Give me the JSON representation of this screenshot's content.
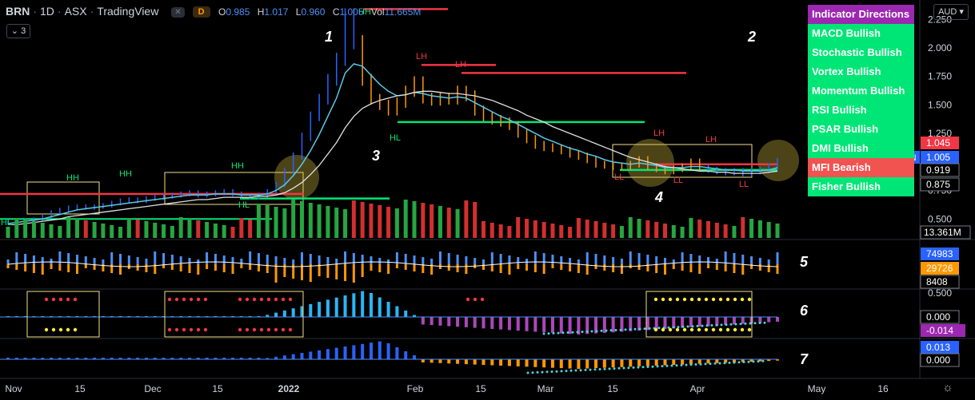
{
  "header": {
    "symbol": "BRN",
    "interval": "1D",
    "exchange": "ASX",
    "source": "TradingView",
    "d_badge": "D",
    "open_label": "O",
    "open": "0.985",
    "high_label": "H",
    "high": "1.017",
    "low_label": "L",
    "low": "0.960",
    "close_label": "C",
    "close": "1.005",
    "vol_label": "Vol",
    "vol": "11.665M",
    "collapse_count": "3",
    "currency": "AUD"
  },
  "indicator_table": {
    "header": "Indicator Directions",
    "rows": [
      {
        "label": "MACD Bullish",
        "color": "#00e676"
      },
      {
        "label": "Stochastic Bullish",
        "color": "#00e676"
      },
      {
        "label": "Vortex Bullish",
        "color": "#00e676"
      },
      {
        "label": "Momentum Bullish",
        "color": "#00e676"
      },
      {
        "label": "RSI Bullish",
        "color": "#00e676"
      },
      {
        "label": "PSAR Bullish",
        "color": "#00e676"
      },
      {
        "label": "DMI Bullish",
        "color": "#00e676"
      },
      {
        "label": "MFI Bearish",
        "color": "#f05350"
      },
      {
        "label": "Fisher Bullish",
        "color": "#00e676"
      }
    ],
    "header_color": "#9c27b0"
  },
  "annotations": [
    "1",
    "2",
    "3",
    "4",
    "5",
    "6",
    "7"
  ],
  "chart_data": [
    {
      "panel": "price",
      "type": "line",
      "title": "BRN · 1D · ASX",
      "price_ticks": [
        "2.250",
        "2.000",
        "1.750",
        "1.500",
        "1.250",
        "1.000",
        "0.750",
        "0.500"
      ],
      "ylim": [
        0.32,
        2.42
      ],
      "x_tick_labels": [
        "Nov",
        "15",
        "Dec",
        "15",
        "2022",
        "Feb",
        "15",
        "Mar",
        "15",
        "Apr",
        "May",
        "16"
      ],
      "price_labels": [
        {
          "text": "1.045",
          "color": "#f23645"
        },
        {
          "text": "1.005",
          "color": "#2962ff"
        },
        {
          "text": "BRN",
          "color": "#2962ff"
        },
        {
          "text": "0.919",
          "color": "#ffffff"
        },
        {
          "text": "0.875",
          "color": "#ffffff"
        }
      ],
      "swing_labels": [
        "HL",
        "HH",
        "HH",
        "HH",
        "HL",
        "HH",
        "HL",
        "LH",
        "LH",
        "LL",
        "LH",
        "LL",
        "LH",
        "LL"
      ],
      "close_series": [
        0.47,
        0.48,
        0.49,
        0.5,
        0.52,
        0.56,
        0.58,
        0.6,
        0.61,
        0.6,
        0.61,
        0.62,
        0.64,
        0.66,
        0.67,
        0.66,
        0.68,
        0.69,
        0.7,
        0.71,
        0.72,
        0.73,
        0.71,
        0.72,
        0.73,
        0.74,
        0.72,
        0.7,
        0.69,
        0.71,
        0.74,
        0.8,
        0.92,
        1.05,
        1.22,
        1.4,
        1.55,
        1.72,
        1.9,
        2.28,
        2.05,
        1.72,
        1.55,
        1.5,
        1.45,
        1.52,
        1.62,
        1.7,
        1.56,
        1.54,
        1.56,
        1.55,
        1.62,
        1.58,
        1.45,
        1.4,
        1.37,
        1.35,
        1.32,
        1.25,
        1.2,
        1.15,
        1.13,
        1.12,
        1.1,
        1.07,
        1.05,
        1.02,
        0.98,
        0.97,
        0.96,
        0.96,
        0.98,
        1.02,
        0.96,
        0.94,
        0.92,
        0.94,
        0.96,
        1.0,
        0.95,
        0.93,
        0.92,
        0.91,
        0.92,
        0.9,
        0.92,
        0.93,
        0.96,
        1.005
      ],
      "ema_fast": [
        0.46,
        0.47,
        0.48,
        0.49,
        0.5,
        0.52,
        0.54,
        0.56,
        0.58,
        0.59,
        0.6,
        0.61,
        0.62,
        0.63,
        0.64,
        0.65,
        0.66,
        0.67,
        0.68,
        0.69,
        0.7,
        0.71,
        0.71,
        0.71,
        0.72,
        0.72,
        0.72,
        0.71,
        0.71,
        0.71,
        0.72,
        0.75,
        0.8,
        0.88,
        0.98,
        1.1,
        1.24,
        1.4,
        1.56,
        1.78,
        1.86,
        1.84,
        1.76,
        1.68,
        1.62,
        1.58,
        1.59,
        1.61,
        1.6,
        1.58,
        1.57,
        1.56,
        1.57,
        1.56,
        1.52,
        1.48,
        1.44,
        1.4,
        1.37,
        1.33,
        1.29,
        1.25,
        1.21,
        1.18,
        1.15,
        1.12,
        1.1,
        1.07,
        1.05,
        1.02,
        1.0,
        0.99,
        0.98,
        0.99,
        0.98,
        0.97,
        0.95,
        0.95,
        0.95,
        0.96,
        0.96,
        0.95,
        0.94,
        0.93,
        0.93,
        0.92,
        0.92,
        0.92,
        0.93,
        0.95
      ],
      "ema_slow": [
        0.45,
        0.45,
        0.46,
        0.47,
        0.48,
        0.49,
        0.5,
        0.52,
        0.53,
        0.54,
        0.55,
        0.56,
        0.57,
        0.58,
        0.59,
        0.6,
        0.61,
        0.62,
        0.63,
        0.64,
        0.65,
        0.66,
        0.67,
        0.67,
        0.68,
        0.69,
        0.69,
        0.69,
        0.69,
        0.7,
        0.7,
        0.71,
        0.73,
        0.77,
        0.82,
        0.89,
        0.97,
        1.07,
        1.17,
        1.3,
        1.4,
        1.47,
        1.51,
        1.54,
        1.56,
        1.58,
        1.59,
        1.61,
        1.62,
        1.62,
        1.61,
        1.6,
        1.6,
        1.59,
        1.58,
        1.56,
        1.54,
        1.51,
        1.48,
        1.45,
        1.41,
        1.38,
        1.35,
        1.31,
        1.28,
        1.25,
        1.22,
        1.19,
        1.16,
        1.13,
        1.1,
        1.07,
        1.04,
        1.02,
        1.0,
        0.98,
        0.96,
        0.95,
        0.94,
        0.93,
        0.92,
        0.92,
        0.91,
        0.91,
        0.9,
        0.9,
        0.9,
        0.9,
        0.91,
        0.92
      ],
      "levels": [
        {
          "y": 2.34,
          "color": "#f23645",
          "kind": "resistance"
        },
        {
          "y": 1.85,
          "color": "#f23645",
          "kind": "resistance"
        },
        {
          "y": 1.78,
          "color": "#f23645",
          "kind": "resistance"
        },
        {
          "y": 1.35,
          "color": "#00e676",
          "kind": "support"
        },
        {
          "y": 0.98,
          "color": "#f23645",
          "kind": "resistance"
        },
        {
          "y": 0.93,
          "color": "#00e676",
          "kind": "support"
        },
        {
          "y": 0.72,
          "color": "#f23645",
          "kind": "resistance"
        },
        {
          "y": 0.68,
          "color": "#00e676",
          "kind": "support"
        }
      ]
    },
    {
      "panel": "volume",
      "type": "bar",
      "last_label": "13.361M"
    },
    {
      "panel": "oscillator_5",
      "type": "bar",
      "labels": [
        {
          "text": "74983",
          "color": "#2962ff"
        },
        {
          "text": "29726",
          "color": "#ff9800"
        },
        {
          "text": "8408",
          "color": "#ffffff"
        }
      ]
    },
    {
      "panel": "oscillator_6",
      "type": "bar",
      "ticks": [
        "0.500",
        "0.000"
      ],
      "last_label": {
        "text": "-0.014",
        "color": "#9c27b0"
      }
    },
    {
      "panel": "oscillator_7",
      "type": "bar",
      "labels": [
        {
          "text": "0.013",
          "color": "#2962ff"
        },
        {
          "text": "0.000",
          "color": "#ffffff"
        }
      ]
    }
  ]
}
